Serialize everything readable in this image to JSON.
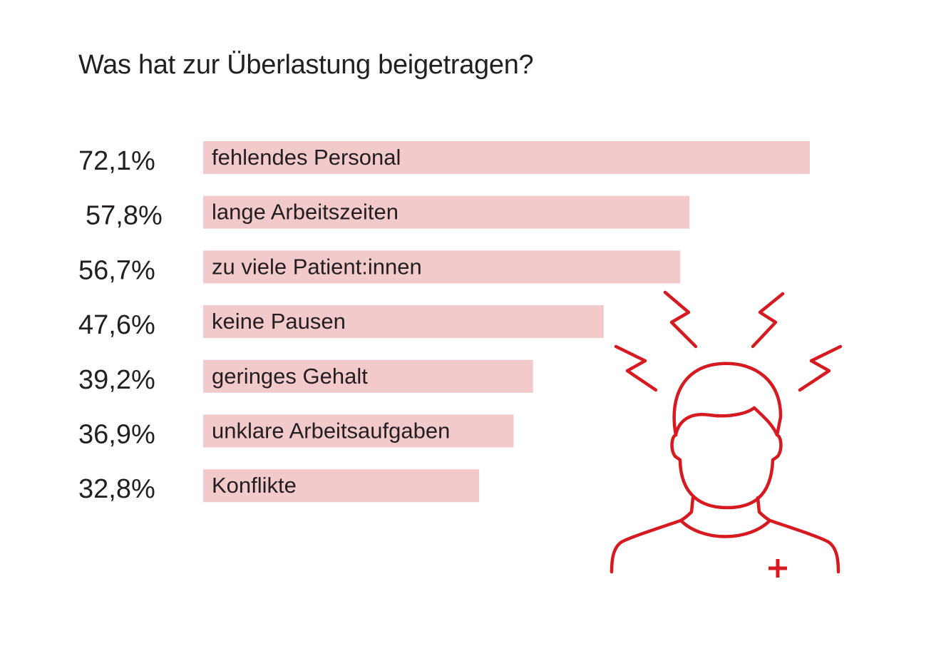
{
  "chart_data": {
    "type": "bar",
    "orientation": "horizontal",
    "title": "Was hat zur Überlastung beigetragen?",
    "unit": "%",
    "categories": [
      "fehlendes Personal",
      "lange Arbeitszeiten",
      "zu viele Patient:innen",
      "keine Pausen",
      "geringes Gehalt",
      "unklare Arbeitsaufgaben",
      "Konflikte"
    ],
    "values": [
      72.1,
      57.8,
      56.7,
      47.6,
      39.2,
      36.9,
      32.8
    ],
    "value_labels": [
      "72,1%",
      "57,8%",
      "56,7%",
      "47,6%",
      "39,2%",
      "36,9%",
      "32,8%"
    ],
    "xlim": [
      0,
      72.1
    ],
    "grid": false,
    "legend": "none",
    "bar_color": "#f3cacb",
    "text_color": "#231f20",
    "accent_color": "#d71920"
  },
  "illustration": {
    "icon": "stressed-person-with-headache-icon"
  }
}
